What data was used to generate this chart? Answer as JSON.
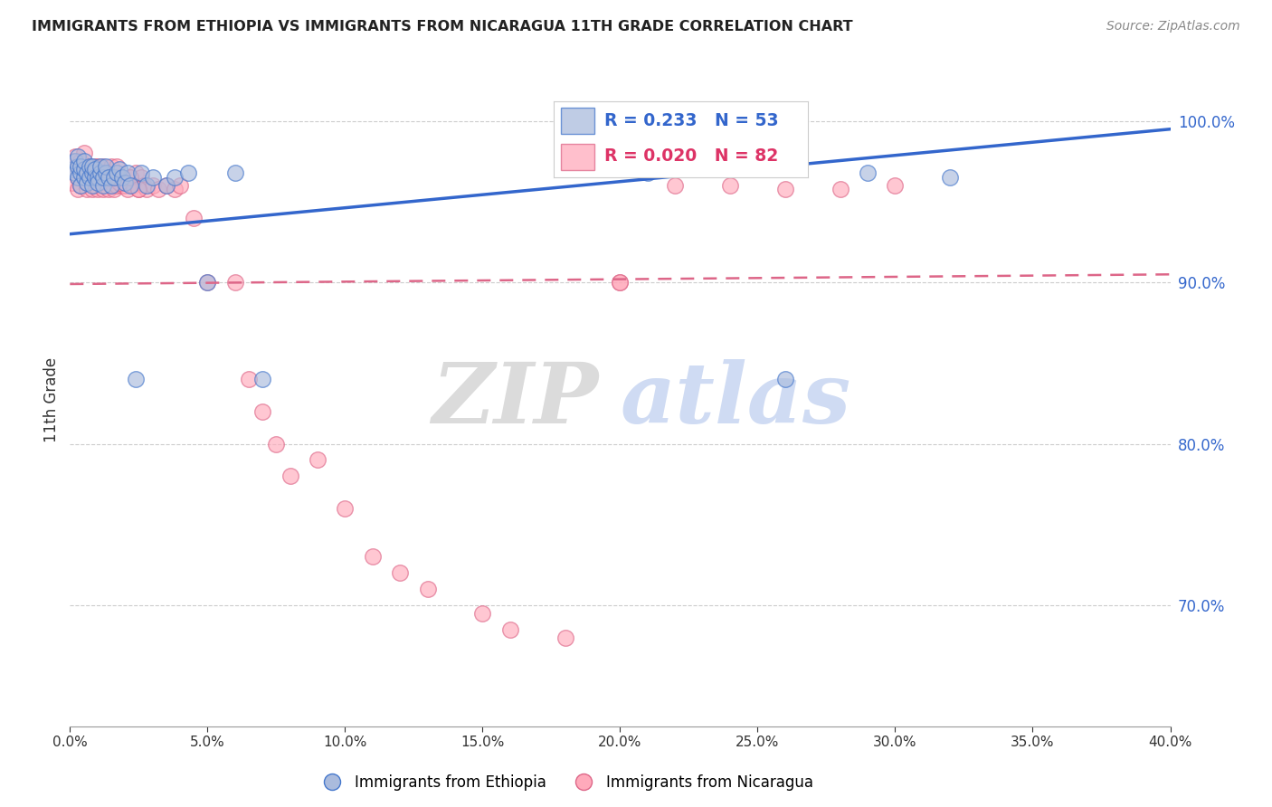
{
  "title": "IMMIGRANTS FROM ETHIOPIA VS IMMIGRANTS FROM NICARAGUA 11TH GRADE CORRELATION CHART",
  "source": "Source: ZipAtlas.com",
  "ylabel": "11th Grade",
  "xlim": [
    0.0,
    0.4
  ],
  "ylim": [
    0.625,
    1.03
  ],
  "xticks": [
    0.0,
    0.05,
    0.1,
    0.15,
    0.2,
    0.25,
    0.3,
    0.35,
    0.4
  ],
  "yticks_right": [
    0.7,
    0.8,
    0.9,
    1.0
  ],
  "blue_R": 0.233,
  "blue_N": 53,
  "pink_R": 0.02,
  "pink_N": 82,
  "blue_fill": "#AABBDD",
  "blue_edge": "#4477CC",
  "pink_fill": "#FFAABB",
  "pink_edge": "#DD6688",
  "blue_line_color": "#3366CC",
  "pink_line_color": "#DD6688",
  "legend_label_blue": "Immigrants from Ethiopia",
  "legend_label_pink": "Immigrants from Nicaragua",
  "watermark_zip": "ZIP",
  "watermark_atlas": "atlas",
  "blue_scatter_x": [
    0.001,
    0.002,
    0.002,
    0.003,
    0.003,
    0.003,
    0.004,
    0.004,
    0.004,
    0.005,
    0.005,
    0.005,
    0.006,
    0.006,
    0.007,
    0.007,
    0.008,
    0.008,
    0.008,
    0.009,
    0.009,
    0.01,
    0.01,
    0.011,
    0.011,
    0.012,
    0.012,
    0.013,
    0.013,
    0.014,
    0.015,
    0.016,
    0.017,
    0.018,
    0.019,
    0.02,
    0.021,
    0.022,
    0.024,
    0.026,
    0.028,
    0.03,
    0.035,
    0.038,
    0.043,
    0.05,
    0.06,
    0.07,
    0.2,
    0.21,
    0.26,
    0.29,
    0.32
  ],
  "blue_scatter_y": [
    0.97,
    0.968,
    0.975,
    0.965,
    0.972,
    0.978,
    0.968,
    0.972,
    0.96,
    0.965,
    0.97,
    0.975,
    0.962,
    0.968,
    0.965,
    0.972,
    0.96,
    0.968,
    0.972,
    0.965,
    0.97,
    0.965,
    0.962,
    0.968,
    0.972,
    0.96,
    0.965,
    0.968,
    0.972,
    0.965,
    0.96,
    0.965,
    0.968,
    0.97,
    0.965,
    0.962,
    0.968,
    0.96,
    0.84,
    0.968,
    0.96,
    0.965,
    0.96,
    0.965,
    0.968,
    0.9,
    0.968,
    0.84,
    0.97,
    0.968,
    0.84,
    0.968,
    0.965
  ],
  "pink_scatter_x": [
    0.001,
    0.001,
    0.002,
    0.002,
    0.003,
    0.003,
    0.003,
    0.004,
    0.004,
    0.004,
    0.005,
    0.005,
    0.005,
    0.006,
    0.006,
    0.006,
    0.007,
    0.007,
    0.008,
    0.008,
    0.009,
    0.009,
    0.01,
    0.01,
    0.01,
    0.011,
    0.011,
    0.012,
    0.012,
    0.013,
    0.013,
    0.014,
    0.014,
    0.015,
    0.015,
    0.015,
    0.016,
    0.016,
    0.017,
    0.017,
    0.018,
    0.019,
    0.02,
    0.021,
    0.022,
    0.023,
    0.024,
    0.025,
    0.026,
    0.027,
    0.028,
    0.03,
    0.032,
    0.035,
    0.038,
    0.04,
    0.045,
    0.05,
    0.06,
    0.065,
    0.07,
    0.075,
    0.08,
    0.09,
    0.1,
    0.11,
    0.12,
    0.13,
    0.15,
    0.16,
    0.18,
    0.2,
    0.22,
    0.24,
    0.26,
    0.28,
    0.3,
    0.01,
    0.018,
    0.022,
    0.025,
    0.2
  ],
  "pink_scatter_y": [
    0.975,
    0.962,
    0.968,
    0.978,
    0.965,
    0.972,
    0.958,
    0.968,
    0.975,
    0.96,
    0.972,
    0.965,
    0.98,
    0.968,
    0.958,
    0.962,
    0.965,
    0.972,
    0.958,
    0.968,
    0.972,
    0.96,
    0.965,
    0.958,
    0.972,
    0.965,
    0.968,
    0.958,
    0.972,
    0.965,
    0.962,
    0.968,
    0.958,
    0.965,
    0.96,
    0.972,
    0.958,
    0.965,
    0.972,
    0.96,
    0.965,
    0.96,
    0.96,
    0.958,
    0.965,
    0.96,
    0.968,
    0.958,
    0.965,
    0.96,
    0.958,
    0.96,
    0.958,
    0.96,
    0.958,
    0.96,
    0.94,
    0.9,
    0.9,
    0.84,
    0.82,
    0.8,
    0.78,
    0.79,
    0.76,
    0.73,
    0.72,
    0.71,
    0.695,
    0.685,
    0.68,
    0.9,
    0.96,
    0.96,
    0.958,
    0.958,
    0.96,
    0.968,
    0.962,
    0.965,
    0.958,
    0.9
  ]
}
